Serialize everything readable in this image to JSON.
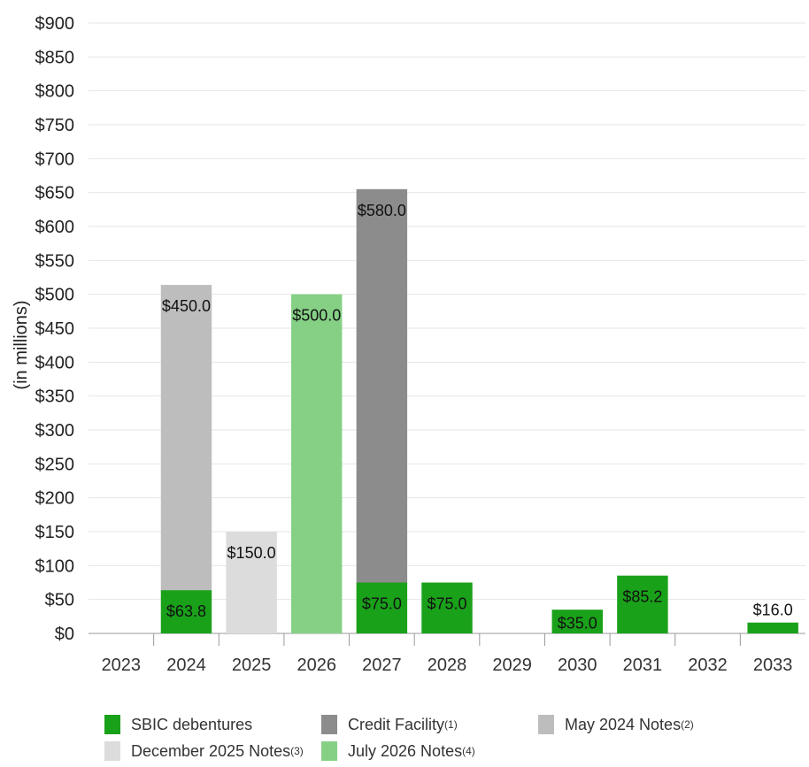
{
  "chart_data": {
    "type": "bar",
    "stacked": true,
    "ylabel": "(in millions)",
    "ylim": [
      0,
      900
    ],
    "yticks": [
      0,
      50,
      100,
      150,
      200,
      250,
      300,
      350,
      400,
      450,
      500,
      550,
      600,
      650,
      700,
      750,
      800,
      850,
      900
    ],
    "ytick_labels": [
      "$0",
      "$50",
      "$100",
      "$150",
      "$200",
      "$250",
      "$300",
      "$350",
      "$400",
      "$450",
      "$500",
      "$550",
      "$600",
      "$650",
      "$700",
      "$750",
      "$800",
      "$850",
      "$900"
    ],
    "grid": true,
    "legend_position": "bottom",
    "categories": [
      "2023",
      "2024",
      "2025",
      "2026",
      "2027",
      "2028",
      "2029",
      "2030",
      "2031",
      "2032",
      "2033"
    ],
    "series": [
      {
        "name": "SBIC debentures",
        "note": "",
        "color": "#1aa11a",
        "values": [
          0,
          63.8,
          0,
          0,
          75.0,
          75.0,
          0,
          35.0,
          85.2,
          0,
          16.0
        ],
        "labels": [
          "",
          "$63.8",
          "",
          "",
          "$75.0",
          "$75.0",
          "",
          "$35.0",
          "$85.2",
          "",
          "$16.0"
        ]
      },
      {
        "name": "Credit Facility",
        "note": "(1)",
        "color": "#8c8c8c",
        "values": [
          0,
          0,
          0,
          0,
          580.0,
          0,
          0,
          0,
          0,
          0,
          0
        ],
        "labels": [
          "",
          "",
          "",
          "",
          "$580.0",
          "",
          "",
          "",
          "",
          "",
          ""
        ]
      },
      {
        "name": "May 2024 Notes",
        "note": "(2)",
        "color": "#bdbdbd",
        "values": [
          0,
          450.0,
          0,
          0,
          0,
          0,
          0,
          0,
          0,
          0,
          0
        ],
        "labels": [
          "",
          "$450.0",
          "",
          "",
          "",
          "",
          "",
          "",
          "",
          "",
          ""
        ]
      },
      {
        "name": "December 2025 Notes",
        "note": "(3)",
        "color": "#dcdcdc",
        "values": [
          0,
          0,
          150.0,
          0,
          0,
          0,
          0,
          0,
          0,
          0,
          0
        ],
        "labels": [
          "",
          "",
          "$150.0",
          "",
          "",
          "",
          "",
          "",
          "",
          "",
          ""
        ]
      },
      {
        "name": "July 2026 Notes",
        "note": "(4)",
        "color": "#86d086",
        "values": [
          0,
          0,
          0,
          500.0,
          0,
          0,
          0,
          0,
          0,
          0,
          0
        ],
        "labels": [
          "",
          "",
          "",
          "$500.0",
          "",
          "",
          "",
          "",
          "",
          "",
          ""
        ]
      }
    ]
  }
}
